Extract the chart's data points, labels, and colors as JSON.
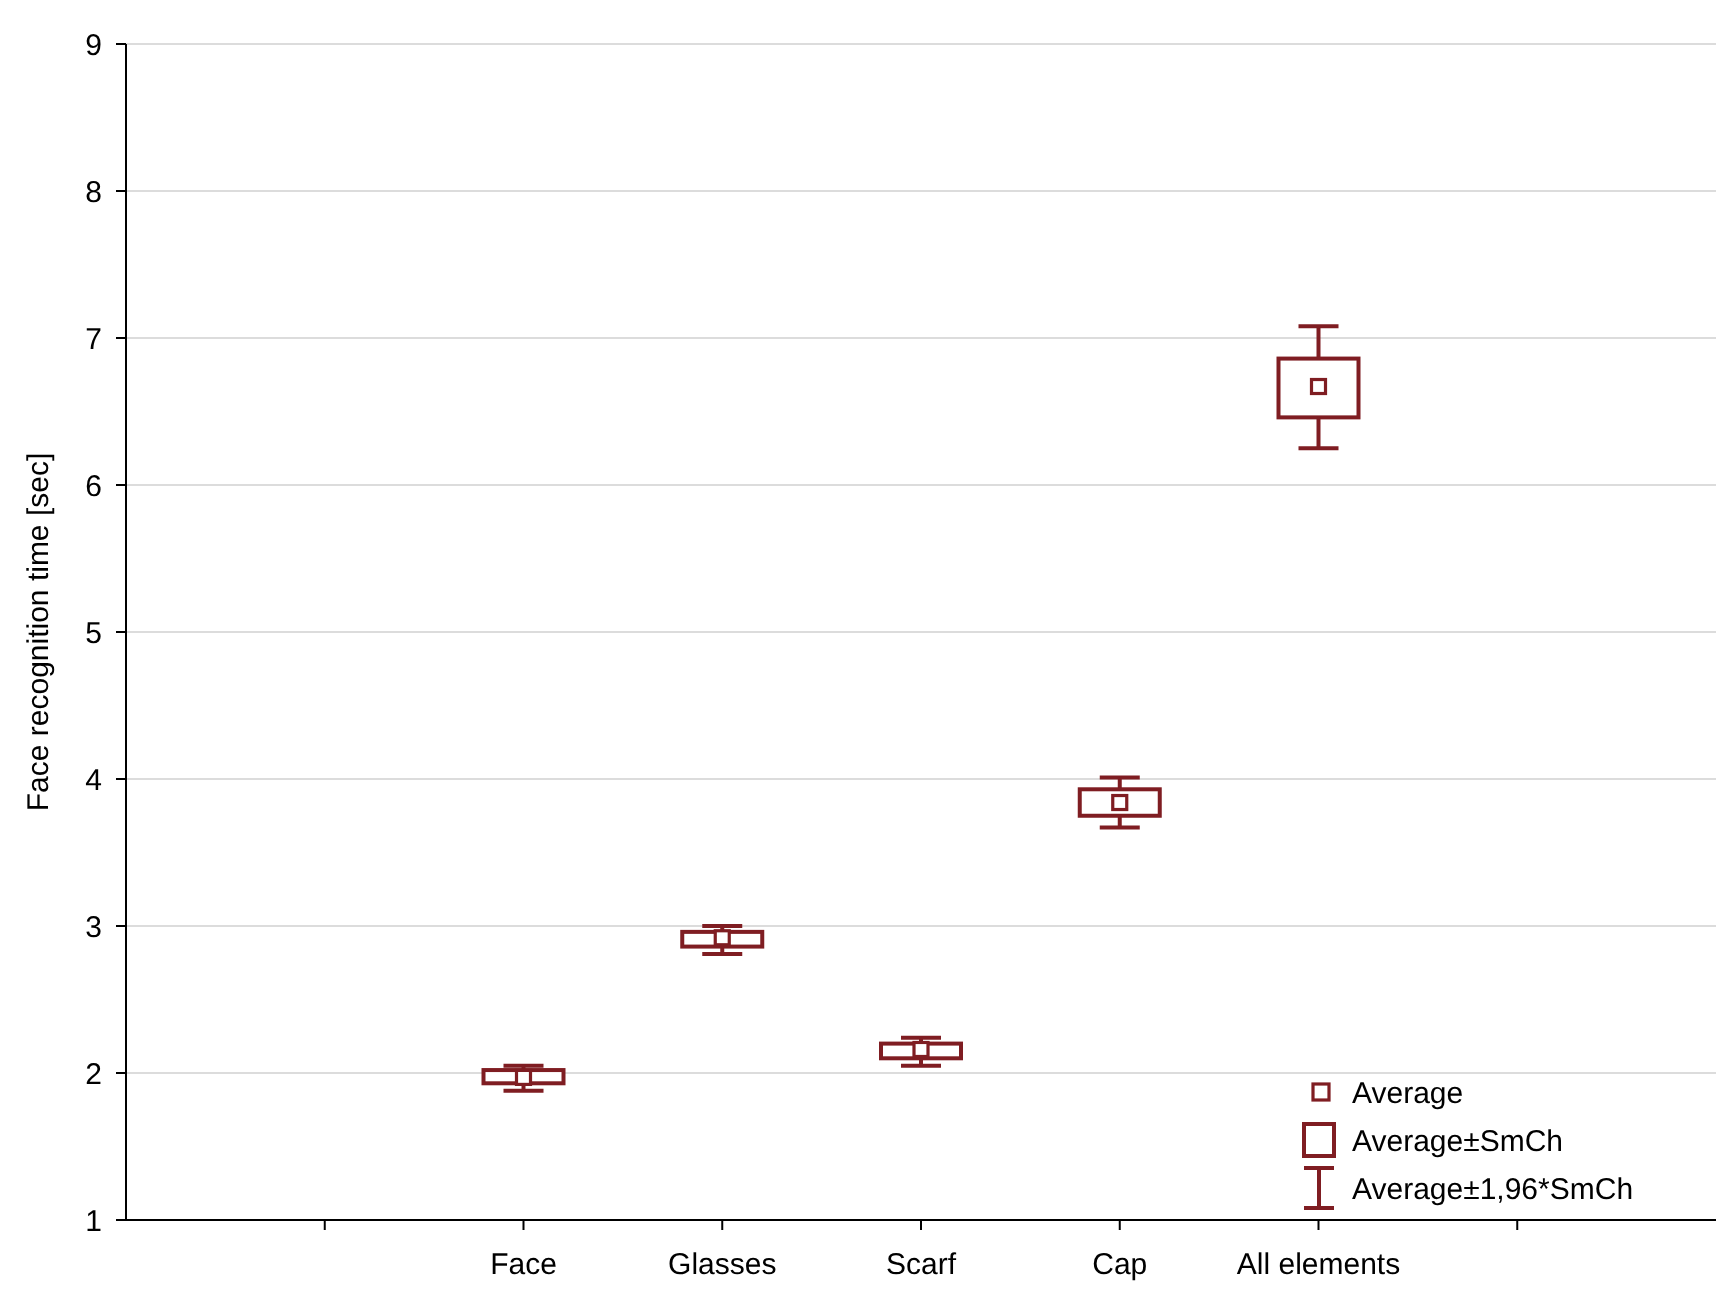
{
  "chart_data": {
    "type": "box",
    "ylabel": "Face recognition time [sec]",
    "categories": [
      null,
      "Face",
      "Glasses",
      "Scarf",
      "Cap",
      "All elements",
      null
    ],
    "color": "#7f1d22",
    "boxes": [
      null,
      {
        "low": 1.88,
        "q1": 1.93,
        "median": 1.97,
        "q3": 2.02,
        "high": 2.05
      },
      {
        "low": 2.81,
        "q1": 2.86,
        "median": 2.92,
        "q3": 2.96,
        "high": 3.0
      },
      {
        "low": 2.05,
        "q1": 2.1,
        "median": 2.16,
        "q3": 2.2,
        "high": 2.24
      },
      {
        "low": 3.67,
        "q1": 3.75,
        "median": 3.84,
        "q3": 3.93,
        "high": 4.01
      },
      {
        "low": 6.25,
        "q1": 6.46,
        "median": 6.67,
        "q3": 6.86,
        "high": 7.08
      },
      null
    ],
    "ylim": [
      1,
      9
    ],
    "yticks": [
      1,
      2,
      3,
      4,
      5,
      6,
      7,
      8,
      9
    ],
    "grid": "y",
    "annotations": [
      "Average",
      "Average±SmCh",
      "Average±1,96*SmCh"
    ]
  }
}
